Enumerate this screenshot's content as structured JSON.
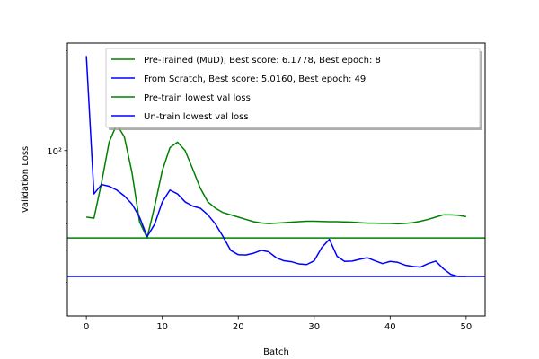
{
  "chart_data": {
    "type": "line",
    "title": "",
    "xlabel": "Batch",
    "ylabel": "Validation Loss",
    "yscale": "log",
    "xlim": [
      -2.5,
      52.5
    ],
    "ylim": [
      31.7,
      211
    ],
    "xticks": [
      0,
      10,
      20,
      30,
      40,
      50
    ],
    "yticks": [
      {
        "value": 100,
        "label": "10²"
      }
    ],
    "legend_position": "upper right",
    "grid": false,
    "series": [
      {
        "name": "Pre-Trained (MuD), Best score: 6.1778, Best epoch: 8",
        "color": "#008000",
        "x": [
          0,
          1,
          2,
          3,
          4,
          5,
          6,
          7,
          8,
          9,
          10,
          11,
          12,
          13,
          14,
          15,
          16,
          17,
          18,
          19,
          20,
          21,
          22,
          23,
          24,
          25,
          26,
          27,
          28,
          29,
          30,
          31,
          32,
          33,
          34,
          35,
          36,
          37,
          38,
          39,
          40,
          41,
          42,
          43,
          44,
          45,
          46,
          47,
          48,
          49,
          50
        ],
        "y": [
          63,
          62.5,
          80,
          106,
          120,
          110,
          86,
          61,
          54.5,
          68,
          87,
          102,
          106,
          100,
          88,
          77,
          70,
          67,
          65,
          64,
          63,
          62,
          61,
          60.5,
          60.2,
          60.4,
          60.6,
          60.8,
          61,
          61.2,
          61.2,
          61.1,
          61,
          61,
          60.9,
          60.8,
          60.6,
          60.4,
          60.4,
          60.3,
          60.3,
          60.1,
          60.3,
          60.6,
          61.2,
          62,
          63,
          64,
          64,
          63.8,
          63.2
        ]
      },
      {
        "name": "From Scratch, Best score: 5.0160, Best epoch: 49",
        "color": "#0000ff",
        "x": [
          0,
          1,
          2,
          3,
          4,
          5,
          6,
          7,
          8,
          9,
          10,
          11,
          12,
          13,
          14,
          15,
          16,
          17,
          18,
          19,
          20,
          21,
          22,
          23,
          24,
          25,
          26,
          27,
          28,
          29,
          30,
          31,
          32,
          33,
          34,
          35,
          36,
          37,
          38,
          39,
          40,
          41,
          42,
          43,
          44,
          45,
          46,
          47,
          48,
          49,
          50
        ],
        "y": [
          193,
          74,
          79,
          78,
          76,
          73,
          69,
          63,
          55,
          60,
          70,
          76,
          74,
          70,
          68,
          67,
          64,
          60,
          55,
          50,
          48.5,
          48.4,
          49,
          50,
          49.5,
          47.5,
          46.5,
          46.2,
          45.5,
          45.3,
          46.5,
          51,
          54,
          48,
          46.3,
          46.4,
          47,
          47.5,
          46.5,
          45.6,
          46.3,
          46,
          45.1,
          44.7,
          44.5,
          45.6,
          46.4,
          44,
          42.3,
          41.7,
          41.7
        ]
      }
    ],
    "reference_lines": [
      {
        "name": "Pre-train lowest val loss",
        "color": "#008000",
        "y": 54.5
      },
      {
        "name": "Un-train lowest val loss",
        "color": "#0000ff",
        "y": 41.7
      }
    ]
  }
}
